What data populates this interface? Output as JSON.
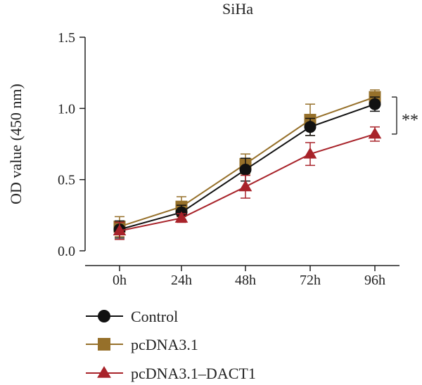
{
  "chart_data": {
    "type": "line",
    "title": "SiHa",
    "xlabel": "",
    "ylabel": "OD value (450 nm)",
    "categories": [
      "0h",
      "24h",
      "48h",
      "72h",
      "96h"
    ],
    "ylim": [
      0,
      1.5
    ],
    "yticks": [
      "0.0",
      "0.5",
      "1.0",
      "1.5"
    ],
    "grid": false,
    "legend_position": "bottom-left",
    "significance": {
      "label": "**",
      "between": [
        "pcDNA3.1",
        "pcDNA3.1–DACT1"
      ],
      "at": "96h"
    },
    "series": [
      {
        "name": "Control",
        "color": "#111111",
        "marker": "circle",
        "values": [
          0.15,
          0.27,
          0.57,
          0.87,
          1.03
        ],
        "errors": [
          0.06,
          0.05,
          0.08,
          0.06,
          0.05
        ]
      },
      {
        "name": "pcDNA3.1",
        "color": "#96702A",
        "marker": "square",
        "values": [
          0.17,
          0.31,
          0.61,
          0.92,
          1.08
        ],
        "errors": [
          0.07,
          0.07,
          0.07,
          0.11,
          0.05
        ]
      },
      {
        "name": "pcDNA3.1–DACT1",
        "color": "#A8232A",
        "marker": "triangle",
        "values": [
          0.14,
          0.23,
          0.45,
          0.68,
          0.82
        ],
        "errors": [
          0.06,
          0.03,
          0.08,
          0.08,
          0.05
        ]
      }
    ]
  }
}
